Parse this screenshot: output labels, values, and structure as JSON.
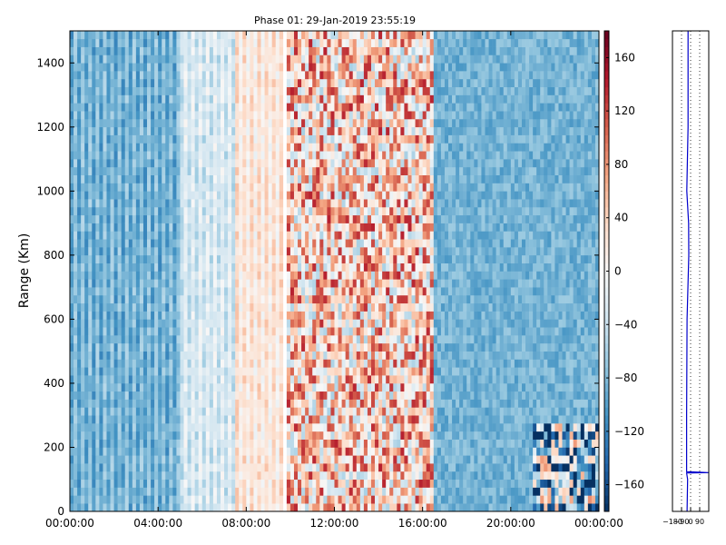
{
  "chart_data": [
    {
      "type": "heatmap",
      "title": "Phase 01: 29-Jan-2019 23:55:19",
      "ylabel": "Range (Km)",
      "xlabel": "",
      "xlim": [
        "00:00:00",
        "24:00:00"
      ],
      "x_ticks": [
        "00:00:00",
        "04:00:00",
        "08:00:00",
        "12:00:00",
        "16:00:00",
        "20:00:00",
        "00:00:00"
      ],
      "ylim": [
        0,
        1500
      ],
      "y_ticks": [
        0,
        200,
        400,
        600,
        800,
        1000,
        1200,
        1400
      ],
      "colorbar": {
        "range": [
          -180,
          180
        ],
        "ticks": [
          160,
          120,
          80,
          40,
          0,
          -40,
          -80,
          -120,
          -160
        ],
        "colormap": "RdBu_r"
      },
      "segments_hours_mean_value": [
        {
          "hours": [
            0,
            5
          ],
          "mean": -100
        },
        {
          "hours": [
            5,
            7.5
          ],
          "mean": -45
        },
        {
          "hours": [
            7.5,
            9.6
          ],
          "mean": 5
        },
        {
          "hours": [
            9.6,
            9.9
          ],
          "mean": null
        },
        {
          "hours": [
            9.9,
            16.5
          ],
          "mean": 40
        },
        {
          "hours": [
            16.5,
            24
          ],
          "mean": -85
        }
      ]
    },
    {
      "type": "line",
      "xlim": [
        -180,
        180
      ],
      "x_ticks_labels": [
        "-180",
        "-90",
        "0",
        "90"
      ],
      "ylim": [
        0,
        1500
      ],
      "line_color": "#0000cc",
      "profile_range_value": [
        {
          "range": 0,
          "value": -35
        },
        {
          "range": 100,
          "value": -30
        },
        {
          "range": 120,
          "value": -40
        },
        {
          "range": 121,
          "value": 180
        },
        {
          "range": 124,
          "value": -40
        },
        {
          "range": 300,
          "value": -40
        },
        {
          "range": 600,
          "value": -35
        },
        {
          "range": 800,
          "value": -18
        },
        {
          "range": 900,
          "value": -20
        },
        {
          "range": 1000,
          "value": -38
        },
        {
          "range": 1200,
          "value": -25
        },
        {
          "range": 1500,
          "value": -25
        }
      ]
    }
  ],
  "colors": {
    "low": "#053061",
    "mid": "#f7f7f7",
    "high": "#67001f"
  }
}
